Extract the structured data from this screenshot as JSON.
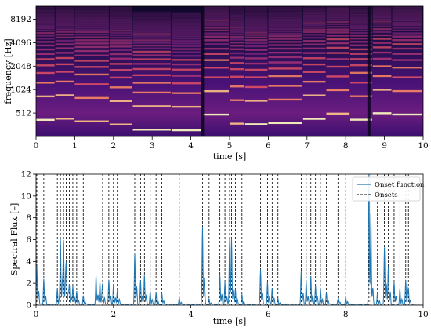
{
  "chart_data": [
    {
      "type": "heatmap",
      "title": "",
      "xlabel": "time [s]",
      "ylabel": "frequency [Hz]",
      "xlim": [
        0,
        10
      ],
      "ylim_hz": [
        256,
        12000
      ],
      "yscale": "log2",
      "xticks": [
        0,
        1,
        2,
        3,
        4,
        5,
        6,
        7,
        8,
        9,
        10
      ],
      "yticks": [
        512,
        1024,
        2048,
        4096,
        8192
      ],
      "colormap": "magma",
      "note_onsets": [
        0.5,
        1.0,
        1.9,
        2.5,
        3.5,
        4.3,
        5.0,
        5.4,
        6.0,
        6.9,
        7.5,
        8.1,
        8.7,
        9.2
      ],
      "segment_boundaries": [
        4.3,
        8.6
      ]
    },
    {
      "type": "line",
      "title": "",
      "xlabel": "time [s]",
      "ylabel": "Spectral Flux [–]",
      "xlim": [
        0,
        10
      ],
      "ylim": [
        0,
        12
      ],
      "xticks": [
        0,
        2,
        4,
        6,
        8,
        10
      ],
      "yticks": [
        0,
        2,
        4,
        6,
        8,
        10,
        12
      ],
      "legend_position": "top-right",
      "series": [
        {
          "name": "Onset function",
          "color": "#1f77b4",
          "x": [
            0.02,
            0.2,
            0.55,
            0.63,
            0.71,
            0.78,
            0.86,
            0.95,
            1.05,
            1.22,
            1.55,
            1.65,
            1.72,
            1.88,
            2.0,
            2.1,
            2.55,
            2.7,
            2.8,
            2.95,
            3.1,
            3.25,
            3.7,
            4.3,
            4.47,
            4.75,
            4.88,
            5.0,
            5.05,
            5.15,
            5.32,
            5.8,
            5.98,
            6.1,
            6.25,
            6.85,
            6.98,
            7.1,
            7.22,
            7.35,
            7.5,
            7.8,
            8.0,
            8.6,
            8.65,
            8.82,
            9.0,
            9.1,
            9.25,
            9.4,
            9.55,
            9.62
          ],
          "y": [
            3.6,
            2.3,
            1.5,
            6.1,
            5.9,
            3.3,
            1.9,
            1.7,
            1.2,
            0.8,
            2.6,
            2.1,
            1.8,
            2.3,
            1.9,
            1.3,
            4.8,
            2.2,
            2.7,
            1.2,
            1.1,
            1.0,
            0.7,
            7.1,
            0.5,
            2.7,
            2.1,
            6.0,
            3.9,
            1.5,
            0.9,
            3.2,
            2.1,
            1.5,
            0.6,
            3.1,
            2.1,
            2.6,
            1.8,
            1.5,
            1.1,
            0.5,
            0.8,
            12.0,
            4.2,
            1.1,
            5.3,
            3.5,
            2.1,
            1.5,
            2.2,
            1.3
          ]
        },
        {
          "name": "Onsets",
          "color": "#000000",
          "x": [
            0.02,
            0.2,
            0.55,
            0.63,
            0.71,
            0.78,
            0.86,
            0.95,
            1.05,
            1.22,
            1.55,
            1.65,
            1.72,
            1.88,
            2.0,
            2.1,
            2.55,
            2.7,
            2.8,
            2.95,
            3.1,
            3.25,
            3.7,
            4.3,
            4.47,
            4.75,
            4.88,
            5.0,
            5.05,
            5.15,
            5.32,
            5.8,
            5.98,
            6.1,
            6.25,
            6.85,
            6.98,
            7.1,
            7.22,
            7.35,
            7.5,
            7.8,
            8.0,
            8.6,
            8.65,
            8.82,
            9.0,
            9.1,
            9.25,
            9.4,
            9.55,
            9.62
          ]
        }
      ]
    }
  ]
}
